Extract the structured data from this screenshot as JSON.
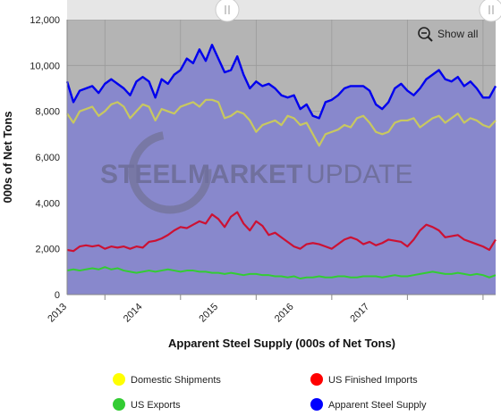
{
  "chart_data": {
    "type": "line",
    "title": "",
    "xlabel": "Apparent Steel Supply (000s of Net Tons)",
    "ylabel": "000s of Net Tons",
    "ylim": [
      0,
      12000
    ],
    "yticks": [
      "0",
      "2,000",
      "4,000",
      "6,000",
      "8,000",
      "10,000",
      "12,000"
    ],
    "xticks": [
      "2013",
      "2014",
      "2015",
      "2016",
      "2017"
    ],
    "x_start": "2012-07",
    "grid": true,
    "legend_position": "bottom",
    "series": [
      {
        "name": "Domestic Shipments",
        "color": "#ffff00",
        "line_color": "#c8c860",
        "values": [
          7900,
          7500,
          8000,
          8100,
          8200,
          7800,
          8000,
          8300,
          8400,
          8200,
          7700,
          8000,
          8300,
          8200,
          7600,
          8100,
          8000,
          7900,
          8200,
          8300,
          8400,
          8200,
          8500,
          8500,
          8400,
          7700,
          7800,
          8000,
          7900,
          7600,
          7100,
          7400,
          7500,
          7600,
          7400,
          7800,
          7700,
          7400,
          7500,
          7000,
          6500,
          7000,
          7100,
          7200,
          7400,
          7300,
          7700,
          7800,
          7500,
          7100,
          7000,
          7100,
          7500,
          7600,
          7600,
          7700,
          7300,
          7500,
          7700,
          7800,
          7500,
          7700,
          7900,
          7500,
          7700,
          7600,
          7400,
          7300,
          7600
        ]
      },
      {
        "name": "US Finished Imports",
        "color": "#ff0000",
        "line_color": "#cc1133",
        "values": [
          1950,
          1900,
          2100,
          2150,
          2100,
          2150,
          2000,
          2100,
          2050,
          2100,
          2000,
          2100,
          2050,
          2300,
          2350,
          2450,
          2600,
          2800,
          2950,
          2900,
          3050,
          3200,
          3100,
          3500,
          3300,
          2950,
          3400,
          3600,
          3100,
          2800,
          3200,
          3000,
          2600,
          2700,
          2500,
          2300,
          2100,
          2000,
          2200,
          2250,
          2200,
          2100,
          2000,
          2200,
          2400,
          2500,
          2400,
          2200,
          2300,
          2150,
          2250,
          2400,
          2350,
          2300,
          2100,
          2400,
          2800,
          3050,
          2950,
          2800,
          2500,
          2550,
          2600,
          2400,
          2300,
          2200,
          2100,
          1950,
          2400
        ]
      },
      {
        "name": "US Exports",
        "color": "#33cc33",
        "line_color": "#33cc33",
        "values": [
          1050,
          1100,
          1050,
          1100,
          1150,
          1100,
          1200,
          1100,
          1150,
          1050,
          1000,
          950,
          1000,
          1050,
          1000,
          1050,
          1100,
          1050,
          1000,
          1050,
          1050,
          1000,
          1000,
          950,
          950,
          900,
          950,
          900,
          850,
          900,
          900,
          850,
          850,
          800,
          800,
          750,
          800,
          700,
          750,
          750,
          800,
          750,
          750,
          800,
          800,
          750,
          750,
          800,
          800,
          800,
          750,
          800,
          850,
          800,
          800,
          850,
          900,
          950,
          1000,
          950,
          900,
          900,
          950,
          900,
          850,
          900,
          850,
          750,
          850
        ]
      },
      {
        "name": "Apparent Steel Supply",
        "color": "#0000ff",
        "line_color": "#0000ee",
        "values": [
          9300,
          8400,
          8900,
          9000,
          9100,
          8800,
          9200,
          9400,
          9200,
          9000,
          8700,
          9300,
          9500,
          9300,
          8600,
          9400,
          9200,
          9600,
          9800,
          10300,
          10100,
          10700,
          10200,
          10900,
          10300,
          9700,
          9800,
          10400,
          9600,
          9000,
          9300,
          9100,
          9200,
          9000,
          8700,
          8600,
          8700,
          8100,
          8300,
          7800,
          7700,
          8400,
          8500,
          8700,
          9000,
          9100,
          9100,
          9100,
          8900,
          8300,
          8100,
          8400,
          9000,
          9200,
          8900,
          8700,
          9000,
          9400,
          9600,
          9800,
          9400,
          9300,
          9500,
          9100,
          9300,
          9000,
          8600,
          8600,
          9100
        ]
      }
    ]
  },
  "zoom": {
    "show_all_label": "Show all",
    "icon": "zoom-out-icon"
  },
  "watermark": {
    "text": "STEEL MARKET UPDATE",
    "word1": "STEEL",
    "word2": "MARKET",
    "word3": "UPDATE"
  },
  "colors": {
    "plot_background": "#8888cc",
    "plot_top_band": "#b4b4b4",
    "navigator": "#e6e6e6"
  }
}
